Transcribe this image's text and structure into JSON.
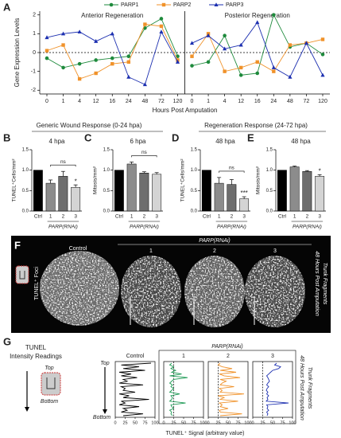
{
  "headers": [
    "Generic Wound Response (0-24 hpa)",
    "Regeneration Response (24-72 hpa)"
  ],
  "chart_data": [
    {
      "type": "line",
      "label": "A",
      "ylabel": "Gene Expression Levels",
      "xlabel": "Hours Post Amputation",
      "ylim": [
        -2.2,
        2.2
      ],
      "yticks": [
        -2,
        -1,
        0,
        1,
        2
      ],
      "reference_line": 0,
      "series": [
        {
          "name": "PARP1",
          "color": "#1e8a3c",
          "marker": "circle",
          "values": [
            [
              -0.3,
              -0.8,
              -0.6,
              -0.4,
              -0.3,
              -0.2,
              1.3,
              1.8,
              -0.2
            ],
            [
              -0.7,
              -0.5,
              0.9,
              -1.2,
              -1.1,
              2.0,
              0.3,
              0.5,
              -0.1
            ]
          ]
        },
        {
          "name": "PARP2",
          "color": "#f0922a",
          "marker": "square",
          "values": [
            [
              0.1,
              0.4,
              -1.4,
              -1.1,
              -0.6,
              -0.5,
              1.5,
              1.4,
              -0.4
            ],
            [
              -0.2,
              1.0,
              -1.0,
              -0.8,
              -0.5,
              -1.0,
              0.4,
              0.5,
              0.7
            ]
          ]
        },
        {
          "name": "PARP3",
          "color": "#1c2fb0",
          "marker": "triangle",
          "values": [
            [
              0.8,
              1.0,
              1.1,
              0.6,
              1.0,
              -1.3,
              -1.7,
              1.1,
              -0.5
            ],
            [
              0.5,
              0.9,
              0.2,
              0.4,
              1.6,
              -0.8,
              -1.3,
              0.5,
              -1.2
            ]
          ]
        }
      ],
      "sections": [
        {
          "title": "Anterior Regeneration",
          "categories": [
            "0",
            "1",
            "4",
            "12",
            "16",
            "24",
            "48",
            "72",
            "120"
          ]
        },
        {
          "title": "Posterior Regeneration",
          "categories": [
            "0",
            "1",
            "4",
            "12",
            "16",
            "24",
            "48",
            "72",
            "120"
          ]
        }
      ]
    },
    {
      "type": "bar",
      "label": "B",
      "title": "4 hpa",
      "ylabel": "TUNEL⁺Cells/mm²",
      "group_label": "PARP(RNAi)",
      "categories": [
        "Ctrl",
        "1",
        "2",
        "3"
      ],
      "values": [
        1.0,
        0.68,
        0.85,
        0.58
      ],
      "errors": [
        null,
        0.08,
        0.12,
        0.06
      ],
      "significance": [
        null,
        null,
        null,
        "*"
      ],
      "bracket_label": "ns",
      "colors": [
        "#000000",
        "#8c8c8c",
        "#6e6e6e",
        "#d4d4d4"
      ],
      "ylim": [
        0,
        1.5
      ],
      "yticks": [
        {
          "value": 0,
          "label": "0.0"
        },
        {
          "value": 0.5,
          "label": "0.5"
        },
        {
          "value": 1,
          "label": "1.0"
        },
        {
          "value": 1.5,
          "label": "1.5"
        }
      ]
    },
    {
      "type": "bar",
      "label": "C",
      "title": "6 hpa",
      "ylabel": "Mitosis/mm²",
      "group_label": "PARP(RNAi)",
      "categories": [
        "Ctrl",
        "1",
        "2",
        "3"
      ],
      "values": [
        1.0,
        1.15,
        0.93,
        0.9
      ],
      "errors": [
        null,
        0.05,
        0.03,
        0.04
      ],
      "significance": [
        null,
        null,
        null,
        null
      ],
      "bracket_label": "ns",
      "colors": [
        "#000000",
        "#8c8c8c",
        "#6e6e6e",
        "#d4d4d4"
      ],
      "ylim": [
        0,
        1.5
      ],
      "yticks": [
        {
          "value": 0,
          "label": "0.0"
        },
        {
          "value": 0.5,
          "label": "0.5"
        },
        {
          "value": 1,
          "label": "1.0"
        },
        {
          "value": 1.5,
          "label": "1.5"
        }
      ]
    },
    {
      "type": "bar",
      "label": "D",
      "title": "48 hpa",
      "ylabel": "TUNEL⁺Cells/mm²",
      "group_label": "PARP(RNAi)",
      "categories": [
        "Ctrl",
        "1",
        "2",
        "3"
      ],
      "values": [
        1.0,
        0.68,
        0.65,
        0.3
      ],
      "errors": [
        null,
        0.14,
        0.12,
        0.05
      ],
      "significance": [
        null,
        null,
        null,
        "***"
      ],
      "bracket_label": "ns",
      "colors": [
        "#000000",
        "#8c8c8c",
        "#6e6e6e",
        "#d4d4d4"
      ],
      "ylim": [
        0,
        1.5
      ],
      "yticks": [
        {
          "value": 0,
          "label": "0.0"
        },
        {
          "value": 0.5,
          "label": "0.5"
        },
        {
          "value": 1,
          "label": "1.0"
        },
        {
          "value": 1.5,
          "label": "1.5"
        }
      ]
    },
    {
      "type": "bar",
      "label": "E",
      "title": "48 hpa",
      "ylabel": "Mitosis/mm²",
      "group_label": "PARP(RNAi)",
      "categories": [
        "Ctrl",
        "1",
        "2",
        "3"
      ],
      "values": [
        1.0,
        1.08,
        0.97,
        0.85
      ],
      "errors": [
        null,
        0.02,
        0.02,
        0.04
      ],
      "significance": [
        null,
        null,
        null,
        "*"
      ],
      "colors": [
        "#000000",
        "#8c8c8c",
        "#6e6e6e",
        "#d4d4d4"
      ],
      "ylim": [
        0,
        1.5
      ],
      "yticks": [
        {
          "value": 0,
          "label": "0.0"
        },
        {
          "value": 0.5,
          "label": "0.5"
        },
        {
          "value": 1,
          "label": "1.0"
        },
        {
          "value": 1.5,
          "label": "1.5"
        }
      ]
    },
    {
      "type": "image",
      "label": "F",
      "stain": "TUNEL⁺ Foci",
      "control": "Control",
      "group": "PARP(RNAi)",
      "conditions": [
        "1",
        "2",
        "3"
      ],
      "notes": [
        "48 Hours Post Amputation",
        "Trunk Fragments"
      ]
    },
    {
      "type": "profile",
      "label": "G",
      "title": [
        "TUNEL",
        "Intensity Readings"
      ],
      "top": "Top",
      "bottom": "Bottom",
      "group": "PARP(RNAi)",
      "xlabel": "TUNEL⁺ Signal (arbitrary value)",
      "notes": [
        "48 Hours Post Amputation",
        "Trunk Fragments"
      ],
      "xlim": [
        0,
        100
      ],
      "xticks": [
        0,
        25,
        50,
        75,
        100
      ],
      "panels": [
        {
          "name": "Control",
          "color": "#000000",
          "values": [
            90,
            15,
            60,
            20,
            75,
            10,
            40,
            15,
            55,
            20,
            30,
            10,
            70,
            15,
            25,
            20,
            50,
            10,
            35,
            20,
            85,
            15,
            25,
            10,
            60,
            20,
            30,
            15,
            70,
            20
          ]
        },
        {
          "name": "1",
          "color": "#1e9a55",
          "reference_line": 25,
          "values": [
            20,
            15,
            25,
            18,
            30,
            20,
            45,
            15,
            60,
            25,
            20,
            15,
            22,
            18,
            25,
            20,
            15,
            40,
            18,
            22,
            20,
            15,
            55,
            18,
            20,
            25,
            15,
            20,
            18,
            22
          ]
        },
        {
          "name": "2",
          "color": "#f0922a",
          "reference_line": 25,
          "values": [
            30,
            25,
            35,
            60,
            30,
            70,
            28,
            40,
            80,
            30,
            45,
            35,
            30,
            65,
            28,
            35,
            30,
            90,
            25,
            40,
            30,
            75,
            28,
            35,
            30,
            50,
            28,
            30,
            85,
            30
          ]
        },
        {
          "name": "3",
          "color": "#1c2fb0",
          "reference_line": 25,
          "values": [
            60,
            55,
            70,
            65,
            50,
            45,
            40,
            35,
            38,
            40,
            42,
            38,
            35,
            40,
            36,
            34,
            38,
            35,
            40,
            36,
            38,
            34,
            90,
            35,
            38,
            36,
            40,
            35,
            38,
            36
          ]
        }
      ]
    }
  ]
}
